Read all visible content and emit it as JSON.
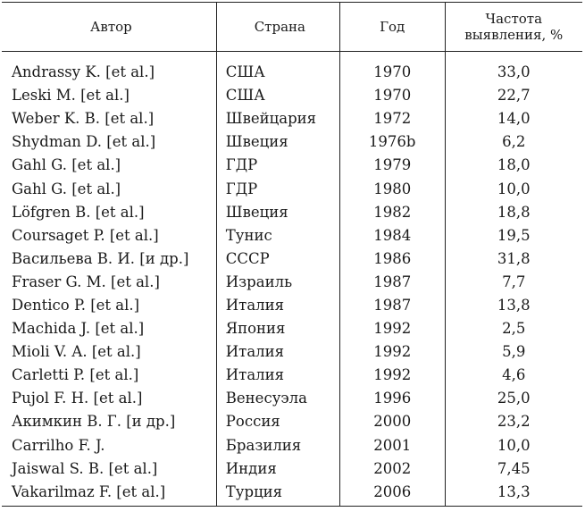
{
  "table": {
    "headers": {
      "author": "Автор",
      "country": "Страна",
      "year": "Год",
      "frequency_line1": "Частота",
      "frequency_line2": "выявления, %"
    },
    "rows": [
      {
        "author": "Andrassy K. [et al.]",
        "country": "США",
        "year": "1970",
        "frequency": "33,0"
      },
      {
        "author": "Leski M. [et al.]",
        "country": "США",
        "year": "1970",
        "frequency": "22,7"
      },
      {
        "author": "Weber K. B. [et al.]",
        "country": "Швейцария",
        "year": "1972",
        "frequency": "14,0"
      },
      {
        "author": "Shydman D. [et al.]",
        "country": "Швеция",
        "year": "1976b",
        "frequency": "6,2"
      },
      {
        "author": "Gahl G. [et al.]",
        "country": "ГДР",
        "year": "1979",
        "frequency": "18,0"
      },
      {
        "author": "Gahl G. [et al.]",
        "country": "ГДР",
        "year": "1980",
        "frequency": "10,0"
      },
      {
        "author": "Löfgren B. [et al.]",
        "country": "Швеция",
        "year": "1982",
        "frequency": "18,8"
      },
      {
        "author": "Coursaget P. [et al.]",
        "country": "Тунис",
        "year": "1984",
        "frequency": "19,5"
      },
      {
        "author": "Васильева В. И. [и др.]",
        "country": "СССР",
        "year": "1986",
        "frequency": "31,8"
      },
      {
        "author": "Fraser G. M. [et al.]",
        "country": "Израиль",
        "year": "1987",
        "frequency": "7,7"
      },
      {
        "author": "Dentico P. [et al.]",
        "country": "Италия",
        "year": "1987",
        "frequency": "13,8"
      },
      {
        "author": "Machida J. [et al.]",
        "country": "Япония",
        "year": "1992",
        "frequency": "2,5"
      },
      {
        "author": "Mioli V. A. [et al.]",
        "country": "Италия",
        "year": "1992",
        "frequency": "5,9"
      },
      {
        "author": "Carletti P. [et al.]",
        "country": "Италия",
        "year": "1992",
        "frequency": "4,6"
      },
      {
        "author": "Pujol F. H. [et al.]",
        "country": "Венесуэла",
        "year": "1996",
        "frequency": "25,0"
      },
      {
        "author": "Акимкин В. Г. [и др.]",
        "country": "Россия",
        "year": "2000",
        "frequency": "23,2"
      },
      {
        "author": "Carrilho F. J.",
        "country": "Бразилия",
        "year": "2001",
        "frequency": "10,0"
      },
      {
        "author": "Jaiswal S. B. [et al.]",
        "country": "Индия",
        "year": "2002",
        "frequency": "7,45"
      },
      {
        "author": "Vakarilmaz F. [et al.]",
        "country": "Турция",
        "year": "2006",
        "frequency": "13,3"
      }
    ]
  }
}
